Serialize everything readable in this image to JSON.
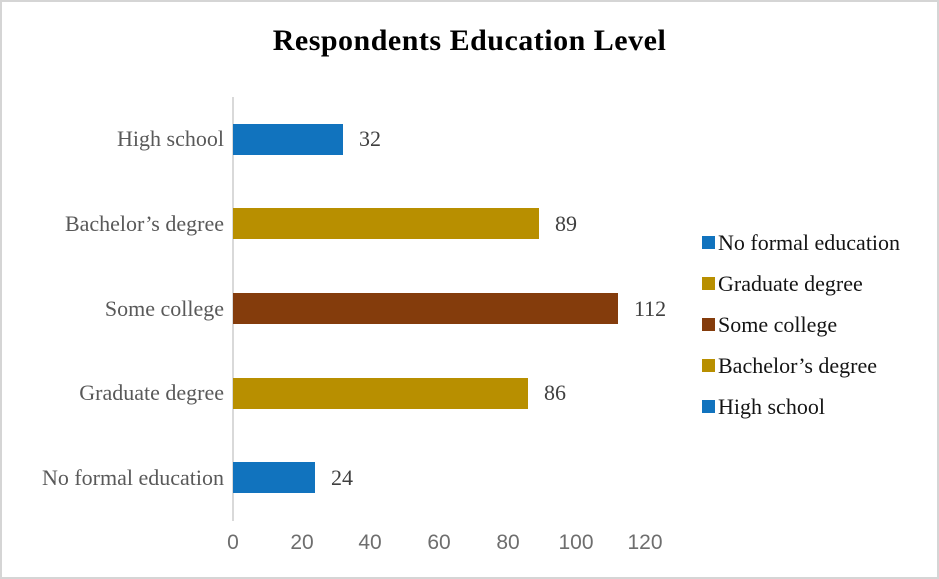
{
  "chart_data": {
    "type": "bar",
    "orientation": "horizontal",
    "title": "Respondents Education Level",
    "categories": [
      "High school",
      "Bachelor’s degree",
      "Some college",
      "Graduate degree",
      "No formal education"
    ],
    "values": [
      32,
      89,
      112,
      86,
      24
    ],
    "value_labels": [
      "32",
      "89",
      "112",
      "86",
      "24"
    ],
    "bar_colors": [
      "#1173be",
      "#b88f00",
      "#843c0c",
      "#b88f00",
      "#1173be"
    ],
    "xlabel": "",
    "ylabel": "",
    "x_axis": {
      "min": 0,
      "max": 120,
      "ticks": [
        0,
        20,
        40,
        60,
        80,
        100,
        120
      ]
    },
    "grid": false,
    "legend": {
      "position": "right",
      "items": [
        {
          "label": "No formal education",
          "color": "#1173be"
        },
        {
          "label": "Graduate degree",
          "color": "#b88f00"
        },
        {
          "label": "Some college",
          "color": "#843c0c"
        },
        {
          "label": "Bachelor’s degree",
          "color": "#b88f00"
        },
        {
          "label": "High school",
          "color": "#1173be"
        }
      ]
    }
  },
  "colors": {
    "axis_line": "#d9d9d9",
    "frame_border": "#d5d5d5",
    "category_text": "#595959",
    "tick_text": "#6e6e6e",
    "value_text": "#3f3f3f",
    "legend_text": "#141414",
    "title_text": "#000000"
  }
}
